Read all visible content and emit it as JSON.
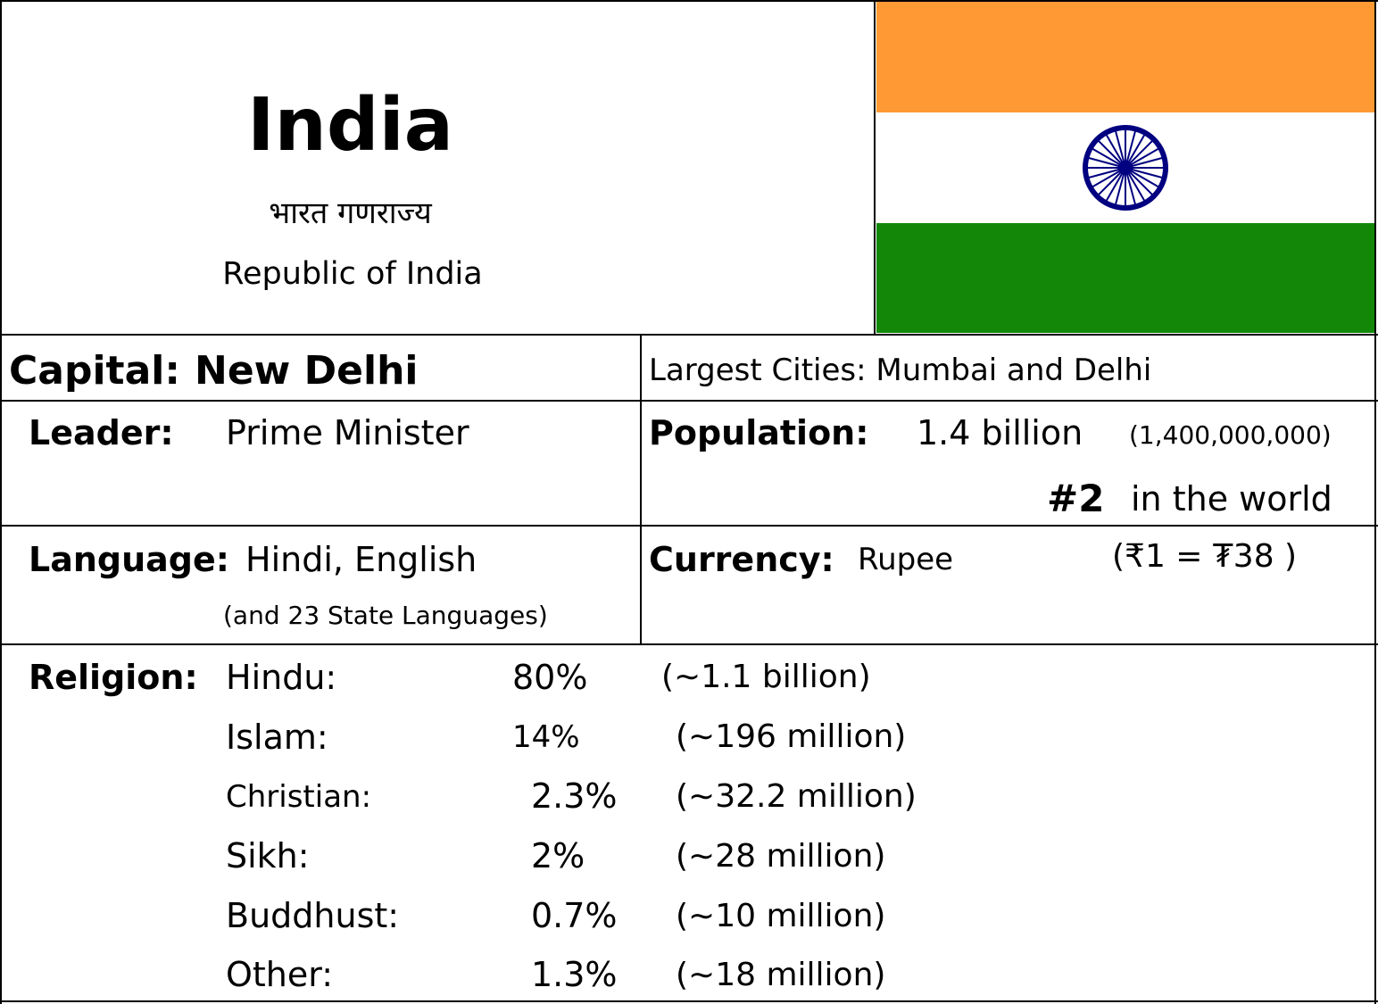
{
  "header": {
    "country_name": "India",
    "native_name": "भारत गणराज्य",
    "official_name": "Republic of India"
  },
  "flag": {
    "stripe_colors": [
      "#ff9933",
      "#ffffff",
      "#138808"
    ],
    "wheel_color": "#000080",
    "wheel_spokes": 24,
    "icon": "ashoka-chakra-icon"
  },
  "capital": {
    "label": "Capital:",
    "value": "New Delhi"
  },
  "largest_cities": {
    "text": "Largest Cities: Mumbai and Delhi"
  },
  "leader": {
    "label": "Leader:",
    "value": "Prime Minister"
  },
  "population": {
    "label": "Population:",
    "value": "1.4 billion",
    "exact": "(1,400,000,000)",
    "rank": "#2",
    "rank_suffix": "in the world"
  },
  "language": {
    "label": "Language:",
    "value": "Hindi, English",
    "note": "(and 23 State Languages)"
  },
  "currency": {
    "label": "Currency:",
    "value": "Rupee",
    "exchange": "(₹1 = ₮38 )"
  },
  "religion": {
    "label": "Religion:",
    "items": [
      {
        "name": "Hindu:",
        "percent": "80%",
        "count": "(∼1.1 billion)"
      },
      {
        "name": "Islam:",
        "percent": "14%",
        "count": "(∼196 million)"
      },
      {
        "name": "Christian:",
        "percent": "2.3%",
        "count": "(∼32.2 million)"
      },
      {
        "name": "Sikh:",
        "percent": "2%",
        "count": "(∼28 million)"
      },
      {
        "name": "Buddhust:",
        "percent": "0.7%",
        "count": "(∼10 million)"
      },
      {
        "name": "Other:",
        "percent": "1.3%",
        "count": "(∼18 million)"
      }
    ]
  }
}
